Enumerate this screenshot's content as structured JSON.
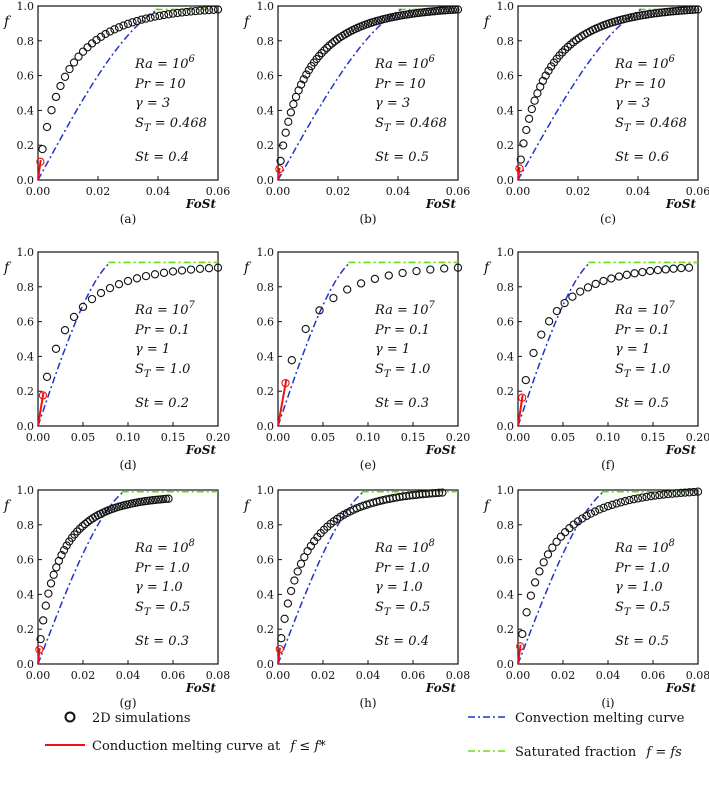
{
  "figure_legend": {
    "simulations": "2D simulations",
    "conduction": "Conduction melting curve at",
    "conduction_math": "f ≤ f*",
    "convection": "Convection melting curve",
    "saturated": "Saturated fraction",
    "saturated_math": "f = fs"
  },
  "colors": {
    "convection": "#2233cc",
    "saturated": "#66dd11",
    "conduction": "#ee1111",
    "simulation": "#111111"
  },
  "chart_data": [
    {
      "type": "scatter",
      "panel": "(a)",
      "xlabel": "FoSt",
      "ylabel": "f",
      "xlim": [
        0,
        0.06
      ],
      "ylim": [
        0,
        1.0
      ],
      "xticks": [
        "0.00",
        "0.02",
        "0.04",
        "0.06"
      ],
      "yticks": [
        "0.0",
        "0.2",
        "0.4",
        "0.6",
        "0.8",
        "1.0"
      ],
      "params": [
        "Ra = 10^6",
        "Pr = 10",
        "γ = 3",
        "S_T = 0.468",
        "St = 0.4"
      ],
      "fs": 0.98,
      "conv_end": 0.04,
      "sim_xmax": 0.06,
      "sim_n": 40,
      "sim_plateau": 0.98
    },
    {
      "type": "scatter",
      "panel": "(b)",
      "xlabel": "FoSt",
      "ylabel": "f",
      "xlim": [
        0,
        0.06
      ],
      "ylim": [
        0,
        1.0
      ],
      "xticks": [
        "0.00",
        "0.02",
        "0.04",
        "0.06"
      ],
      "yticks": [
        "0.0",
        "0.2",
        "0.4",
        "0.6",
        "0.8",
        "1.0"
      ],
      "params": [
        "Ra = 10^6",
        "Pr = 10",
        "γ = 3",
        "S_T = 0.468",
        "St = 0.5"
      ],
      "fs": 0.98,
      "conv_end": 0.041,
      "sim_xmax": 0.06,
      "sim_n": 70,
      "sim_plateau": 0.98
    },
    {
      "type": "scatter",
      "panel": "(c)",
      "xlabel": "FoSt",
      "ylabel": "f",
      "xlim": [
        0,
        0.06
      ],
      "ylim": [
        0,
        1.0
      ],
      "xticks": [
        "0.00",
        "0.02",
        "0.04",
        "0.06"
      ],
      "yticks": [
        "0.0",
        "0.2",
        "0.4",
        "0.6",
        "0.8",
        "1.0"
      ],
      "params": [
        "Ra = 10^6",
        "Pr = 10",
        "γ = 3",
        "S_T = 0.468",
        "St = 0.6"
      ],
      "fs": 0.98,
      "conv_end": 0.041,
      "sim_xmax": 0.06,
      "sim_n": 65,
      "sim_plateau": 0.98
    },
    {
      "type": "scatter",
      "panel": "(d)",
      "xlabel": "FoSt",
      "ylabel": "f",
      "xlim": [
        0,
        0.2
      ],
      "ylim": [
        0,
        1.0
      ],
      "xticks": [
        "0.00",
        "0.05",
        "0.10",
        "0.15",
        "0.20"
      ],
      "yticks": [
        "0.0",
        "0.2",
        "0.4",
        "0.6",
        "0.8",
        "1.0"
      ],
      "params": [
        "Ra = 10^7",
        "Pr = 0.1",
        "γ = 1",
        "S_T = 1.0",
        "St = 0.2"
      ],
      "fs": 0.94,
      "conv_end": 0.08,
      "sim_xmax": 0.2,
      "sim_n": 20,
      "sim_plateau": 0.91
    },
    {
      "type": "scatter",
      "panel": "(e)",
      "xlabel": "FoSt",
      "ylabel": "f",
      "xlim": [
        0,
        0.2
      ],
      "ylim": [
        0,
        1.0
      ],
      "xticks": [
        "0.00",
        "0.05",
        "0.10",
        "0.15",
        "0.20"
      ],
      "yticks": [
        "0.0",
        "0.2",
        "0.4",
        "0.6",
        "0.8",
        "1.0"
      ],
      "params": [
        "Ra = 10^7",
        "Pr = 0.1",
        "γ = 1",
        "S_T = 1.0",
        "St = 0.3"
      ],
      "fs": 0.94,
      "conv_end": 0.08,
      "sim_xmax": 0.2,
      "sim_n": 13,
      "sim_plateau": 0.91
    },
    {
      "type": "scatter",
      "panel": "(f)",
      "xlabel": "FoSt",
      "ylabel": "f",
      "xlim": [
        0,
        0.2
      ],
      "ylim": [
        0,
        1.0
      ],
      "xticks": [
        "0.00",
        "0.05",
        "0.10",
        "0.15",
        "0.20"
      ],
      "yticks": [
        "0.0",
        "0.2",
        "0.4",
        "0.6",
        "0.8",
        "1.0"
      ],
      "params": [
        "Ra = 10^7",
        "Pr = 0.1",
        "γ = 1",
        "S_T = 1.0",
        "St = 0.5"
      ],
      "fs": 0.94,
      "conv_end": 0.08,
      "sim_xmax": 0.19,
      "sim_n": 22,
      "sim_plateau": 0.91
    },
    {
      "type": "scatter",
      "panel": "(g)",
      "xlabel": "FoSt",
      "ylabel": "f",
      "xlim": [
        0,
        0.08
      ],
      "ylim": [
        0,
        1.0
      ],
      "xticks": [
        "0.00",
        "0.02",
        "0.04",
        "0.06",
        "0.08"
      ],
      "yticks": [
        "0.0",
        "0.2",
        "0.4",
        "0.6",
        "0.8",
        "1.0"
      ],
      "params": [
        "Ra = 10^8",
        "Pr = 1.0",
        "γ = 1.0",
        "S_T = 0.5",
        "St = 0.3"
      ],
      "fs": 0.99,
      "conv_end": 0.038,
      "sim_xmax": 0.058,
      "sim_n": 50,
      "sim_plateau": 0.95
    },
    {
      "type": "scatter",
      "panel": "(h)",
      "xlabel": "FoSt",
      "ylabel": "f",
      "xlim": [
        0,
        0.08
      ],
      "ylim": [
        0,
        1.0
      ],
      "xticks": [
        "0.00",
        "0.02",
        "0.04",
        "0.06",
        "0.08"
      ],
      "yticks": [
        "0.0",
        "0.2",
        "0.4",
        "0.6",
        "0.8",
        "1.0"
      ],
      "params": [
        "Ra = 10^8",
        "Pr = 1.0",
        "γ = 1.0",
        "S_T = 0.5",
        "St = 0.4"
      ],
      "fs": 0.99,
      "conv_end": 0.038,
      "sim_xmax": 0.073,
      "sim_n": 50,
      "sim_plateau": 0.985
    },
    {
      "type": "scatter",
      "panel": "(i)",
      "xlabel": "FoSt",
      "ylabel": "f",
      "xlim": [
        0,
        0.08
      ],
      "ylim": [
        0,
        1.0
      ],
      "xticks": [
        "0.00",
        "0.02",
        "0.04",
        "0.06",
        "0.08"
      ],
      "yticks": [
        "0.0",
        "0.2",
        "0.4",
        "0.6",
        "0.8",
        "1.0"
      ],
      "params": [
        "Ra = 10^8",
        "Pr = 1.0",
        "γ = 1.0",
        "S_T = 0.5",
        "St = 0.5"
      ],
      "fs": 0.99,
      "conv_end": 0.038,
      "sim_xmax": 0.08,
      "sim_n": 42,
      "sim_plateau": 0.99
    }
  ]
}
